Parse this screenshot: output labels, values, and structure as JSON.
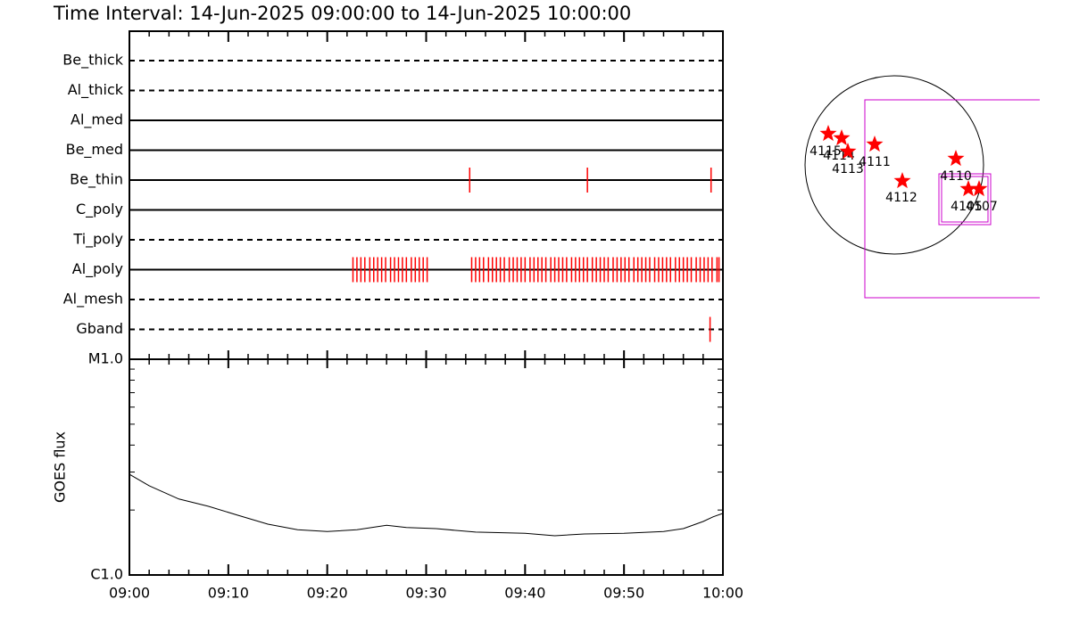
{
  "chart_data": [
    {
      "type": "event",
      "title": "Time Interval: 14-Jun-2025 09:00:00 to 14-Jun-2025 10:00:00",
      "xlim": [
        0,
        60
      ],
      "categories": [
        "Be_thick",
        "Al_thick",
        "Al_med",
        "Be_med",
        "Be_thin",
        "C_poly",
        "Ti_poly",
        "Al_poly",
        "Al_mesh",
        "Gband"
      ],
      "line_styles": [
        "dashed",
        "dashed",
        "solid",
        "solid",
        "solid",
        "solid",
        "dashed",
        "solid",
        "dashed",
        "dashed"
      ],
      "color": "#ff0000",
      "events": [
        [],
        [],
        [],
        [],
        [
          34.4,
          46.3,
          58.8
        ],
        [],
        [],
        [
          22.6,
          23.0,
          23.4,
          23.8,
          24.3,
          24.7,
          25.1,
          25.5,
          25.9,
          26.4,
          26.8,
          27.2,
          27.6,
          28.0,
          28.5,
          28.9,
          29.3,
          29.7,
          30.1,
          34.6,
          35.0,
          35.4,
          35.8,
          36.3,
          36.7,
          37.1,
          37.5,
          37.9,
          38.4,
          38.8,
          39.2,
          39.6,
          40.0,
          40.5,
          40.9,
          41.3,
          41.7,
          42.1,
          42.6,
          43.0,
          43.4,
          43.8,
          44.2,
          44.7,
          45.1,
          45.5,
          45.9,
          46.3,
          46.8,
          47.2,
          47.6,
          48.0,
          48.4,
          48.9,
          49.3,
          49.7,
          50.1,
          50.5,
          51.0,
          51.4,
          51.8,
          52.2,
          52.6,
          53.1,
          53.5,
          53.9,
          54.3,
          54.7,
          55.2,
          55.6,
          56.0,
          56.4,
          56.8,
          57.3,
          57.7,
          58.1,
          58.5,
          58.9,
          59.4,
          59.6
        ],
        [],
        [
          58.7
        ]
      ]
    },
    {
      "type": "line",
      "ylabel": "GOES flux",
      "xlim": [
        0,
        60
      ],
      "xticks": [
        {
          "value": 0,
          "label": "09:00"
        },
        {
          "value": 10,
          "label": "09:10"
        },
        {
          "value": 20,
          "label": "09:20"
        },
        {
          "value": 30,
          "label": "09:30"
        },
        {
          "value": 40,
          "label": "09:40"
        },
        {
          "value": 50,
          "label": "09:50"
        },
        {
          "value": 60,
          "label": "10:00"
        }
      ],
      "ylim": [
        1e-06,
        1e-05
      ],
      "yticks": [
        {
          "value": 1e-06,
          "label": "C1.0"
        },
        {
          "value": 1e-05,
          "label": "M1.0"
        }
      ],
      "log_scale": true,
      "color": "#000000",
      "x": [
        0,
        2,
        5,
        8,
        11,
        14,
        17,
        20,
        23,
        26,
        28,
        31,
        35,
        40,
        43,
        46,
        50,
        54,
        56,
        58,
        59,
        60
      ],
      "values": [
        2.93e-06,
        2.59e-06,
        2.25e-06,
        2.08e-06,
        1.89e-06,
        1.72e-06,
        1.62e-06,
        1.59e-06,
        1.62e-06,
        1.7e-06,
        1.66e-06,
        1.64e-06,
        1.58e-06,
        1.56e-06,
        1.52e-06,
        1.55e-06,
        1.56e-06,
        1.59e-06,
        1.64e-06,
        1.77e-06,
        1.86e-06,
        1.93e-06
      ]
    },
    {
      "type": "map",
      "regions": [
        "4115",
        "4114",
        "4113",
        "4111",
        "4112",
        "4110",
        "4105",
        "4107"
      ]
    }
  ]
}
